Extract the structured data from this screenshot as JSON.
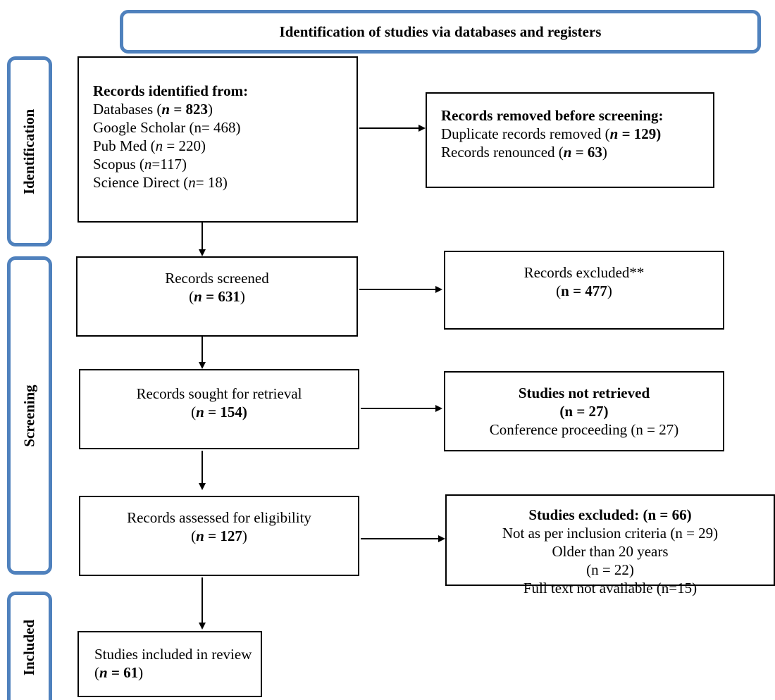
{
  "header": {
    "title": "Identification of studies via databases and registers"
  },
  "stages": {
    "identification": "Identification",
    "screening": "Screening",
    "included": "Included"
  },
  "identified": {
    "heading": "Records identified from:",
    "databases_label": "Databases (",
    "databases_n": "n",
    "databases_val": " = 823",
    "gs": "Google Scholar (n= 468)",
    "pubmed_label": "Pub Med (",
    "pubmed_n": "n",
    "pubmed_val": " = 220)",
    "scopus_label": "Scopus (",
    "scopus_n": "n",
    "scopus_val": "=117)",
    "sd_label": "Science Direct (",
    "sd_n": "n",
    "sd_val": "= 18)"
  },
  "removed": {
    "heading": "Records removed before screening:",
    "dup_label": "Duplicate records removed (",
    "dup_n": "n",
    "dup_val": " = 129)",
    "ren_label": "Records renounced (",
    "ren_n": "n",
    "ren_val": " = 63"
  },
  "screened": {
    "label": "Records screened",
    "n": "n",
    "val": " = 631"
  },
  "excluded": {
    "label": "Records excluded**",
    "val": "n = 477"
  },
  "sought": {
    "label": "Records sought for retrieval",
    "n": "n",
    "val": " = 154)"
  },
  "not_retrieved": {
    "heading": "Studies not retrieved",
    "val": "(n = 27)",
    "reason": "Conference proceeding (n = 27)"
  },
  "assessed": {
    "label": "Records assessed for eligibility",
    "n": "n",
    "val": " = 127"
  },
  "studies_excluded": {
    "heading": "Studies excluded: (n = 66)",
    "r1": "Not as per inclusion criteria (n = 29)",
    "r2": "Older than 20 years",
    "r2b": "(n = 22)",
    "r3": "Full text not available (n=15)"
  },
  "included_box": {
    "label": "Studies included in review",
    "n": "n",
    "val": " = 61"
  },
  "colors": {
    "accent": "#4f81bd"
  }
}
